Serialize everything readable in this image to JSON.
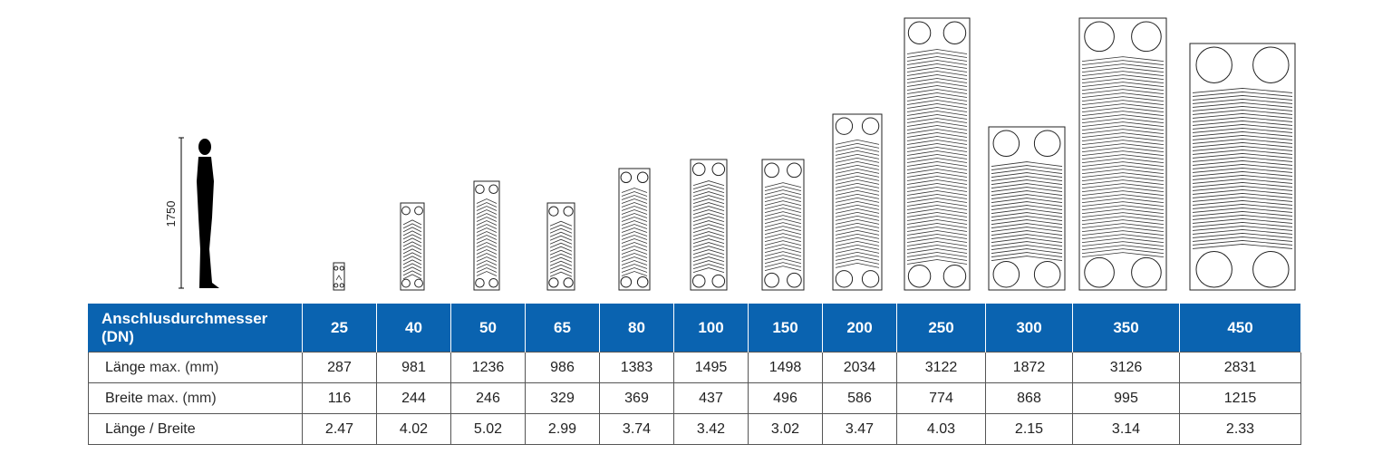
{
  "illustration": {
    "height_label": "1750",
    "person_icon": "person-silhouette-icon",
    "exchanger_icon": "plate-heat-exchanger-icon"
  },
  "colors": {
    "header_bg": "#0a63b0",
    "header_text": "#ffffff",
    "grid": "#555555"
  },
  "table": {
    "header_label": "Anschlusdurchmesser (DN)",
    "sizes": [
      "25",
      "40",
      "50",
      "65",
      "80",
      "100",
      "150",
      "200",
      "250",
      "300",
      "350",
      "450"
    ],
    "rows": [
      {
        "label_main": "Länge",
        "label_unit": "max. (mm)",
        "values": [
          "287",
          "981",
          "1236",
          "986",
          "1383",
          "1495",
          "1498",
          "2034",
          "3122",
          "1872",
          "3126",
          "2831"
        ]
      },
      {
        "label_main": "Breite",
        "label_unit": "max. (mm)",
        "values": [
          "116",
          "244",
          "246",
          "329",
          "369",
          "437",
          "496",
          "586",
          "774",
          "868",
          "995",
          "1215"
        ]
      },
      {
        "label_main": "Länge / Breite",
        "label_unit": "",
        "values": [
          "2.47",
          "4.02",
          "5.02",
          "2.99",
          "3.74",
          "3.42",
          "3.02",
          "3.47",
          "4.03",
          "2.15",
          "3.14",
          "2.33"
        ]
      }
    ]
  }
}
